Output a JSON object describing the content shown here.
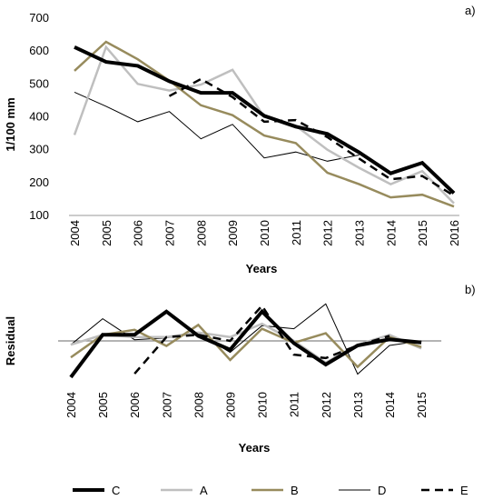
{
  "chart_data": [
    {
      "panel_label": "a)",
      "type": "line",
      "ylabel": "1/100 mm",
      "xlabel": "Years",
      "ylim": [
        100,
        700
      ],
      "yticks": [
        "100",
        "200",
        "300",
        "400",
        "500",
        "600",
        "700"
      ],
      "x": [
        "2004",
        "2005",
        "2006",
        "2007",
        "2008",
        "2009",
        "2010",
        "2011",
        "2012",
        "2013",
        "2014",
        "2015",
        "2016"
      ],
      "grid": false,
      "series": [
        {
          "name": "A",
          "values": [
            345,
            612,
            500,
            480,
            498,
            543,
            400,
            373,
            300,
            245,
            195,
            235,
            137
          ]
        },
        {
          "name": "B",
          "values": [
            540,
            628,
            575,
            510,
            435,
            405,
            343,
            320,
            230,
            195,
            155,
            163,
            127
          ]
        },
        {
          "name": "C",
          "values": [
            612,
            567,
            555,
            508,
            473,
            473,
            403,
            370,
            348,
            292,
            228,
            260,
            168
          ]
        },
        {
          "name": "D",
          "values": [
            475,
            432,
            385,
            416,
            333,
            377,
            275,
            293,
            265,
            284,
            null,
            null,
            null
          ]
        },
        {
          "name": "E",
          "values": [
            null,
            null,
            null,
            463,
            515,
            460,
            385,
            390,
            338,
            273,
            210,
            220,
            160
          ]
        }
      ]
    },
    {
      "panel_label": "b)",
      "type": "line",
      "ylabel": "Residual",
      "xlabel": "Years",
      "ylim": [
        -1,
        1
      ],
      "reference_line": 0,
      "x": [
        "2004",
        "2005",
        "2006",
        "2007",
        "2008",
        "2009",
        "2010",
        "2011",
        "2012",
        "2013",
        "2014",
        "2015"
      ],
      "grid": false,
      "series": [
        {
          "name": "A",
          "values": [
            -0.1,
            0.16,
            0.1,
            0.1,
            0.22,
            0.1,
            0.45,
            0.0,
            -0.57,
            -0.1,
            0.16,
            -0.2
          ]
        },
        {
          "name": "B",
          "values": [
            -0.43,
            0.16,
            0.29,
            -0.13,
            0.42,
            -0.5,
            0.32,
            -0.05,
            0.2,
            -0.68,
            0.1,
            -0.16
          ]
        },
        {
          "name": "C",
          "values": [
            -0.95,
            0.16,
            0.16,
            0.77,
            0.13,
            -0.23,
            0.77,
            -0.06,
            -0.62,
            -0.12,
            0.04,
            -0.04
          ]
        },
        {
          "name": "D",
          "values": [
            -0.1,
            0.58,
            0.03,
            0.08,
            0.2,
            -0.3,
            0.4,
            0.32,
            0.97,
            -0.87,
            -0.12,
            0.0
          ]
        },
        {
          "name": "E",
          "values": [
            null,
            null,
            -0.86,
            0.1,
            0.16,
            0.0,
            0.92,
            -0.36,
            -0.45,
            -0.12,
            0.13,
            null
          ]
        }
      ]
    }
  ],
  "legend": {
    "position": "bottom",
    "items": [
      {
        "name": "C",
        "color": "#000000",
        "width": 4,
        "dash": "none"
      },
      {
        "name": "A",
        "color": "#bfbfbf",
        "width": 2.5,
        "dash": "none"
      },
      {
        "name": "B",
        "color": "#978b5d",
        "width": 2.5,
        "dash": "none"
      },
      {
        "name": "D",
        "color": "#000000",
        "width": 1,
        "dash": "none"
      },
      {
        "name": "E",
        "color": "#000000",
        "width": 2.5,
        "dash": "9,6"
      }
    ]
  }
}
